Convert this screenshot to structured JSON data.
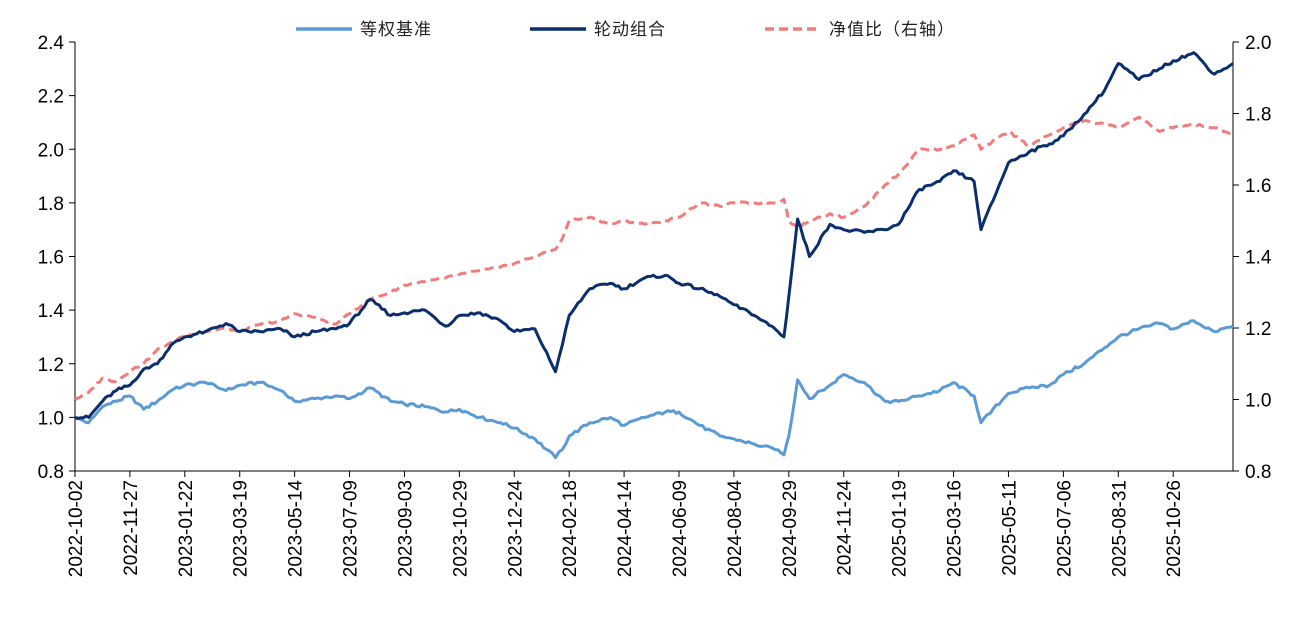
{
  "chart_data": {
    "type": "line",
    "title": "",
    "xlabel": "",
    "ylabel": "",
    "x_tick_labels": [
      "2022-10-02",
      "2022-11-27",
      "2023-01-22",
      "2023-03-19",
      "2023-05-14",
      "2023-07-09",
      "2023-09-03",
      "2023-10-29",
      "2023-12-24",
      "2024-02-18",
      "2024-04-14",
      "2024-06-09",
      "2024-08-04",
      "2024-09-29",
      "2024-11-24",
      "2025-01-19",
      "2025-03-16",
      "2025-05-11",
      "2025-07-06",
      "2025-08-31",
      "2025-10-26"
    ],
    "x_range": [
      "2022-10-02",
      "2025-12-26"
    ],
    "y_left": {
      "ylim": [
        0.8,
        2.4
      ],
      "ticks": [
        "0.8",
        "1.0",
        "1.2",
        "1.4",
        "1.6",
        "1.8",
        "2.0",
        "2.2",
        "2.4"
      ]
    },
    "y_right": {
      "ylim": [
        0.8,
        2.0
      ],
      "ticks": [
        "0.8",
        "1.0",
        "1.2",
        "1.4",
        "1.6",
        "1.8",
        "2.0"
      ]
    },
    "legend_position": "top-center",
    "series": [
      {
        "name": "等权基准",
        "axis": "left",
        "color": "#5B9BD5",
        "style": "solid",
        "x": [
          "2022-10-02",
          "2022-10-16",
          "2022-10-30",
          "2022-11-13",
          "2022-11-27",
          "2022-12-11",
          "2022-12-25",
          "2023-01-08",
          "2023-01-22",
          "2023-02-12",
          "2023-03-05",
          "2023-03-19",
          "2023-04-09",
          "2023-04-30",
          "2023-05-14",
          "2023-06-04",
          "2023-06-25",
          "2023-07-09",
          "2023-07-30",
          "2023-08-20",
          "2023-09-03",
          "2023-09-24",
          "2023-10-15",
          "2023-10-29",
          "2023-11-19",
          "2023-12-10",
          "2023-12-24",
          "2024-01-14",
          "2024-02-04",
          "2024-02-11",
          "2024-02-18",
          "2024-03-10",
          "2024-03-31",
          "2024-04-14",
          "2024-05-05",
          "2024-05-26",
          "2024-06-09",
          "2024-06-30",
          "2024-07-21",
          "2024-08-04",
          "2024-08-25",
          "2024-09-15",
          "2024-09-24",
          "2024-09-29",
          "2024-10-08",
          "2024-10-20",
          "2024-11-10",
          "2024-11-24",
          "2024-12-15",
          "2025-01-05",
          "2025-01-19",
          "2025-02-09",
          "2025-03-02",
          "2025-03-16",
          "2025-04-06",
          "2025-04-13",
          "2025-05-11",
          "2025-06-01",
          "2025-06-22",
          "2025-07-06",
          "2025-07-27",
          "2025-08-17",
          "2025-08-31",
          "2025-09-21",
          "2025-10-12",
          "2025-10-26",
          "2025-11-16",
          "2025-12-07",
          "2025-12-26"
        ],
        "values": [
          1.0,
          0.98,
          1.04,
          1.06,
          1.08,
          1.03,
          1.06,
          1.1,
          1.12,
          1.13,
          1.1,
          1.12,
          1.13,
          1.1,
          1.06,
          1.07,
          1.08,
          1.07,
          1.11,
          1.06,
          1.05,
          1.04,
          1.02,
          1.03,
          1.0,
          0.98,
          0.96,
          0.92,
          0.85,
          0.88,
          0.93,
          0.98,
          1.0,
          0.97,
          1.0,
          1.02,
          1.02,
          0.97,
          0.93,
          0.92,
          0.9,
          0.88,
          0.86,
          0.93,
          1.14,
          1.07,
          1.12,
          1.16,
          1.13,
          1.06,
          1.06,
          1.08,
          1.1,
          1.13,
          1.08,
          0.98,
          1.09,
          1.11,
          1.12,
          1.16,
          1.2,
          1.26,
          1.3,
          1.33,
          1.35,
          1.33,
          1.36,
          1.32,
          1.34
        ]
      },
      {
        "name": "轮动组合",
        "axis": "left",
        "color": "#0B2E6F",
        "style": "solid",
        "x": [
          "2022-10-02",
          "2022-10-16",
          "2022-10-30",
          "2022-11-13",
          "2022-11-27",
          "2022-12-11",
          "2022-12-25",
          "2023-01-08",
          "2023-01-22",
          "2023-02-12",
          "2023-03-05",
          "2023-03-19",
          "2023-04-09",
          "2023-04-30",
          "2023-05-14",
          "2023-06-04",
          "2023-06-25",
          "2023-07-09",
          "2023-07-30",
          "2023-08-20",
          "2023-09-03",
          "2023-09-24",
          "2023-10-15",
          "2023-10-29",
          "2023-11-19",
          "2023-12-10",
          "2023-12-24",
          "2024-01-14",
          "2024-02-04",
          "2024-02-11",
          "2024-02-18",
          "2024-03-10",
          "2024-03-31",
          "2024-04-14",
          "2024-05-05",
          "2024-05-26",
          "2024-06-09",
          "2024-06-30",
          "2024-07-21",
          "2024-08-04",
          "2024-08-25",
          "2024-09-15",
          "2024-09-24",
          "2024-09-29",
          "2024-10-08",
          "2024-10-20",
          "2024-11-10",
          "2024-11-24",
          "2024-12-15",
          "2025-01-05",
          "2025-01-19",
          "2025-02-09",
          "2025-03-02",
          "2025-03-16",
          "2025-04-06",
          "2025-04-13",
          "2025-05-11",
          "2025-06-01",
          "2025-06-22",
          "2025-07-06",
          "2025-07-27",
          "2025-08-17",
          "2025-08-31",
          "2025-09-21",
          "2025-10-12",
          "2025-10-26",
          "2025-11-16",
          "2025-12-07",
          "2025-12-26"
        ],
        "values": [
          1.0,
          1.0,
          1.06,
          1.1,
          1.12,
          1.18,
          1.2,
          1.27,
          1.3,
          1.32,
          1.35,
          1.32,
          1.32,
          1.33,
          1.3,
          1.32,
          1.33,
          1.35,
          1.44,
          1.38,
          1.39,
          1.4,
          1.34,
          1.38,
          1.39,
          1.36,
          1.32,
          1.33,
          1.17,
          1.27,
          1.38,
          1.48,
          1.5,
          1.48,
          1.52,
          1.53,
          1.5,
          1.48,
          1.45,
          1.42,
          1.38,
          1.33,
          1.3,
          1.45,
          1.74,
          1.6,
          1.72,
          1.7,
          1.69,
          1.7,
          1.72,
          1.85,
          1.88,
          1.92,
          1.88,
          1.7,
          1.95,
          1.99,
          2.02,
          2.05,
          2.13,
          2.22,
          2.32,
          2.26,
          2.3,
          2.33,
          2.36,
          2.28,
          2.32
        ]
      },
      {
        "name": "净值比（右轴）",
        "axis": "right",
        "color": "#F07C7C",
        "style": "dashed",
        "x": [
          "2022-10-02",
          "2022-10-16",
          "2022-10-30",
          "2022-11-13",
          "2022-11-27",
          "2022-12-11",
          "2022-12-25",
          "2023-01-08",
          "2023-01-22",
          "2023-02-12",
          "2023-03-05",
          "2023-03-19",
          "2023-04-09",
          "2023-04-30",
          "2023-05-14",
          "2023-06-04",
          "2023-06-25",
          "2023-07-09",
          "2023-07-30",
          "2023-08-20",
          "2023-09-03",
          "2023-09-24",
          "2023-10-15",
          "2023-10-29",
          "2023-11-19",
          "2023-12-10",
          "2023-12-24",
          "2024-01-14",
          "2024-02-04",
          "2024-02-11",
          "2024-02-18",
          "2024-03-10",
          "2024-03-31",
          "2024-04-14",
          "2024-05-05",
          "2024-05-26",
          "2024-06-09",
          "2024-06-30",
          "2024-07-21",
          "2024-08-04",
          "2024-08-25",
          "2024-09-15",
          "2024-09-24",
          "2024-09-29",
          "2024-10-08",
          "2024-10-20",
          "2024-11-10",
          "2024-11-24",
          "2024-12-15",
          "2025-01-05",
          "2025-01-19",
          "2025-02-09",
          "2025-03-02",
          "2025-03-16",
          "2025-04-06",
          "2025-04-13",
          "2025-05-11",
          "2025-06-01",
          "2025-06-22",
          "2025-07-06",
          "2025-07-27",
          "2025-08-17",
          "2025-08-31",
          "2025-09-21",
          "2025-10-12",
          "2025-10-26",
          "2025-11-16",
          "2025-12-07",
          "2025-12-26"
        ],
        "values": [
          1.0,
          1.02,
          1.06,
          1.05,
          1.08,
          1.1,
          1.14,
          1.16,
          1.18,
          1.19,
          1.2,
          1.19,
          1.21,
          1.22,
          1.24,
          1.23,
          1.21,
          1.24,
          1.28,
          1.3,
          1.32,
          1.33,
          1.34,
          1.35,
          1.36,
          1.37,
          1.38,
          1.4,
          1.42,
          1.45,
          1.5,
          1.51,
          1.49,
          1.5,
          1.49,
          1.5,
          1.51,
          1.55,
          1.54,
          1.55,
          1.55,
          1.55,
          1.56,
          1.5,
          1.48,
          1.5,
          1.52,
          1.51,
          1.54,
          1.6,
          1.63,
          1.7,
          1.7,
          1.71,
          1.74,
          1.7,
          1.75,
          1.71,
          1.74,
          1.76,
          1.78,
          1.77,
          1.76,
          1.79,
          1.75,
          1.76,
          1.77,
          1.76,
          1.74
        ]
      }
    ]
  }
}
